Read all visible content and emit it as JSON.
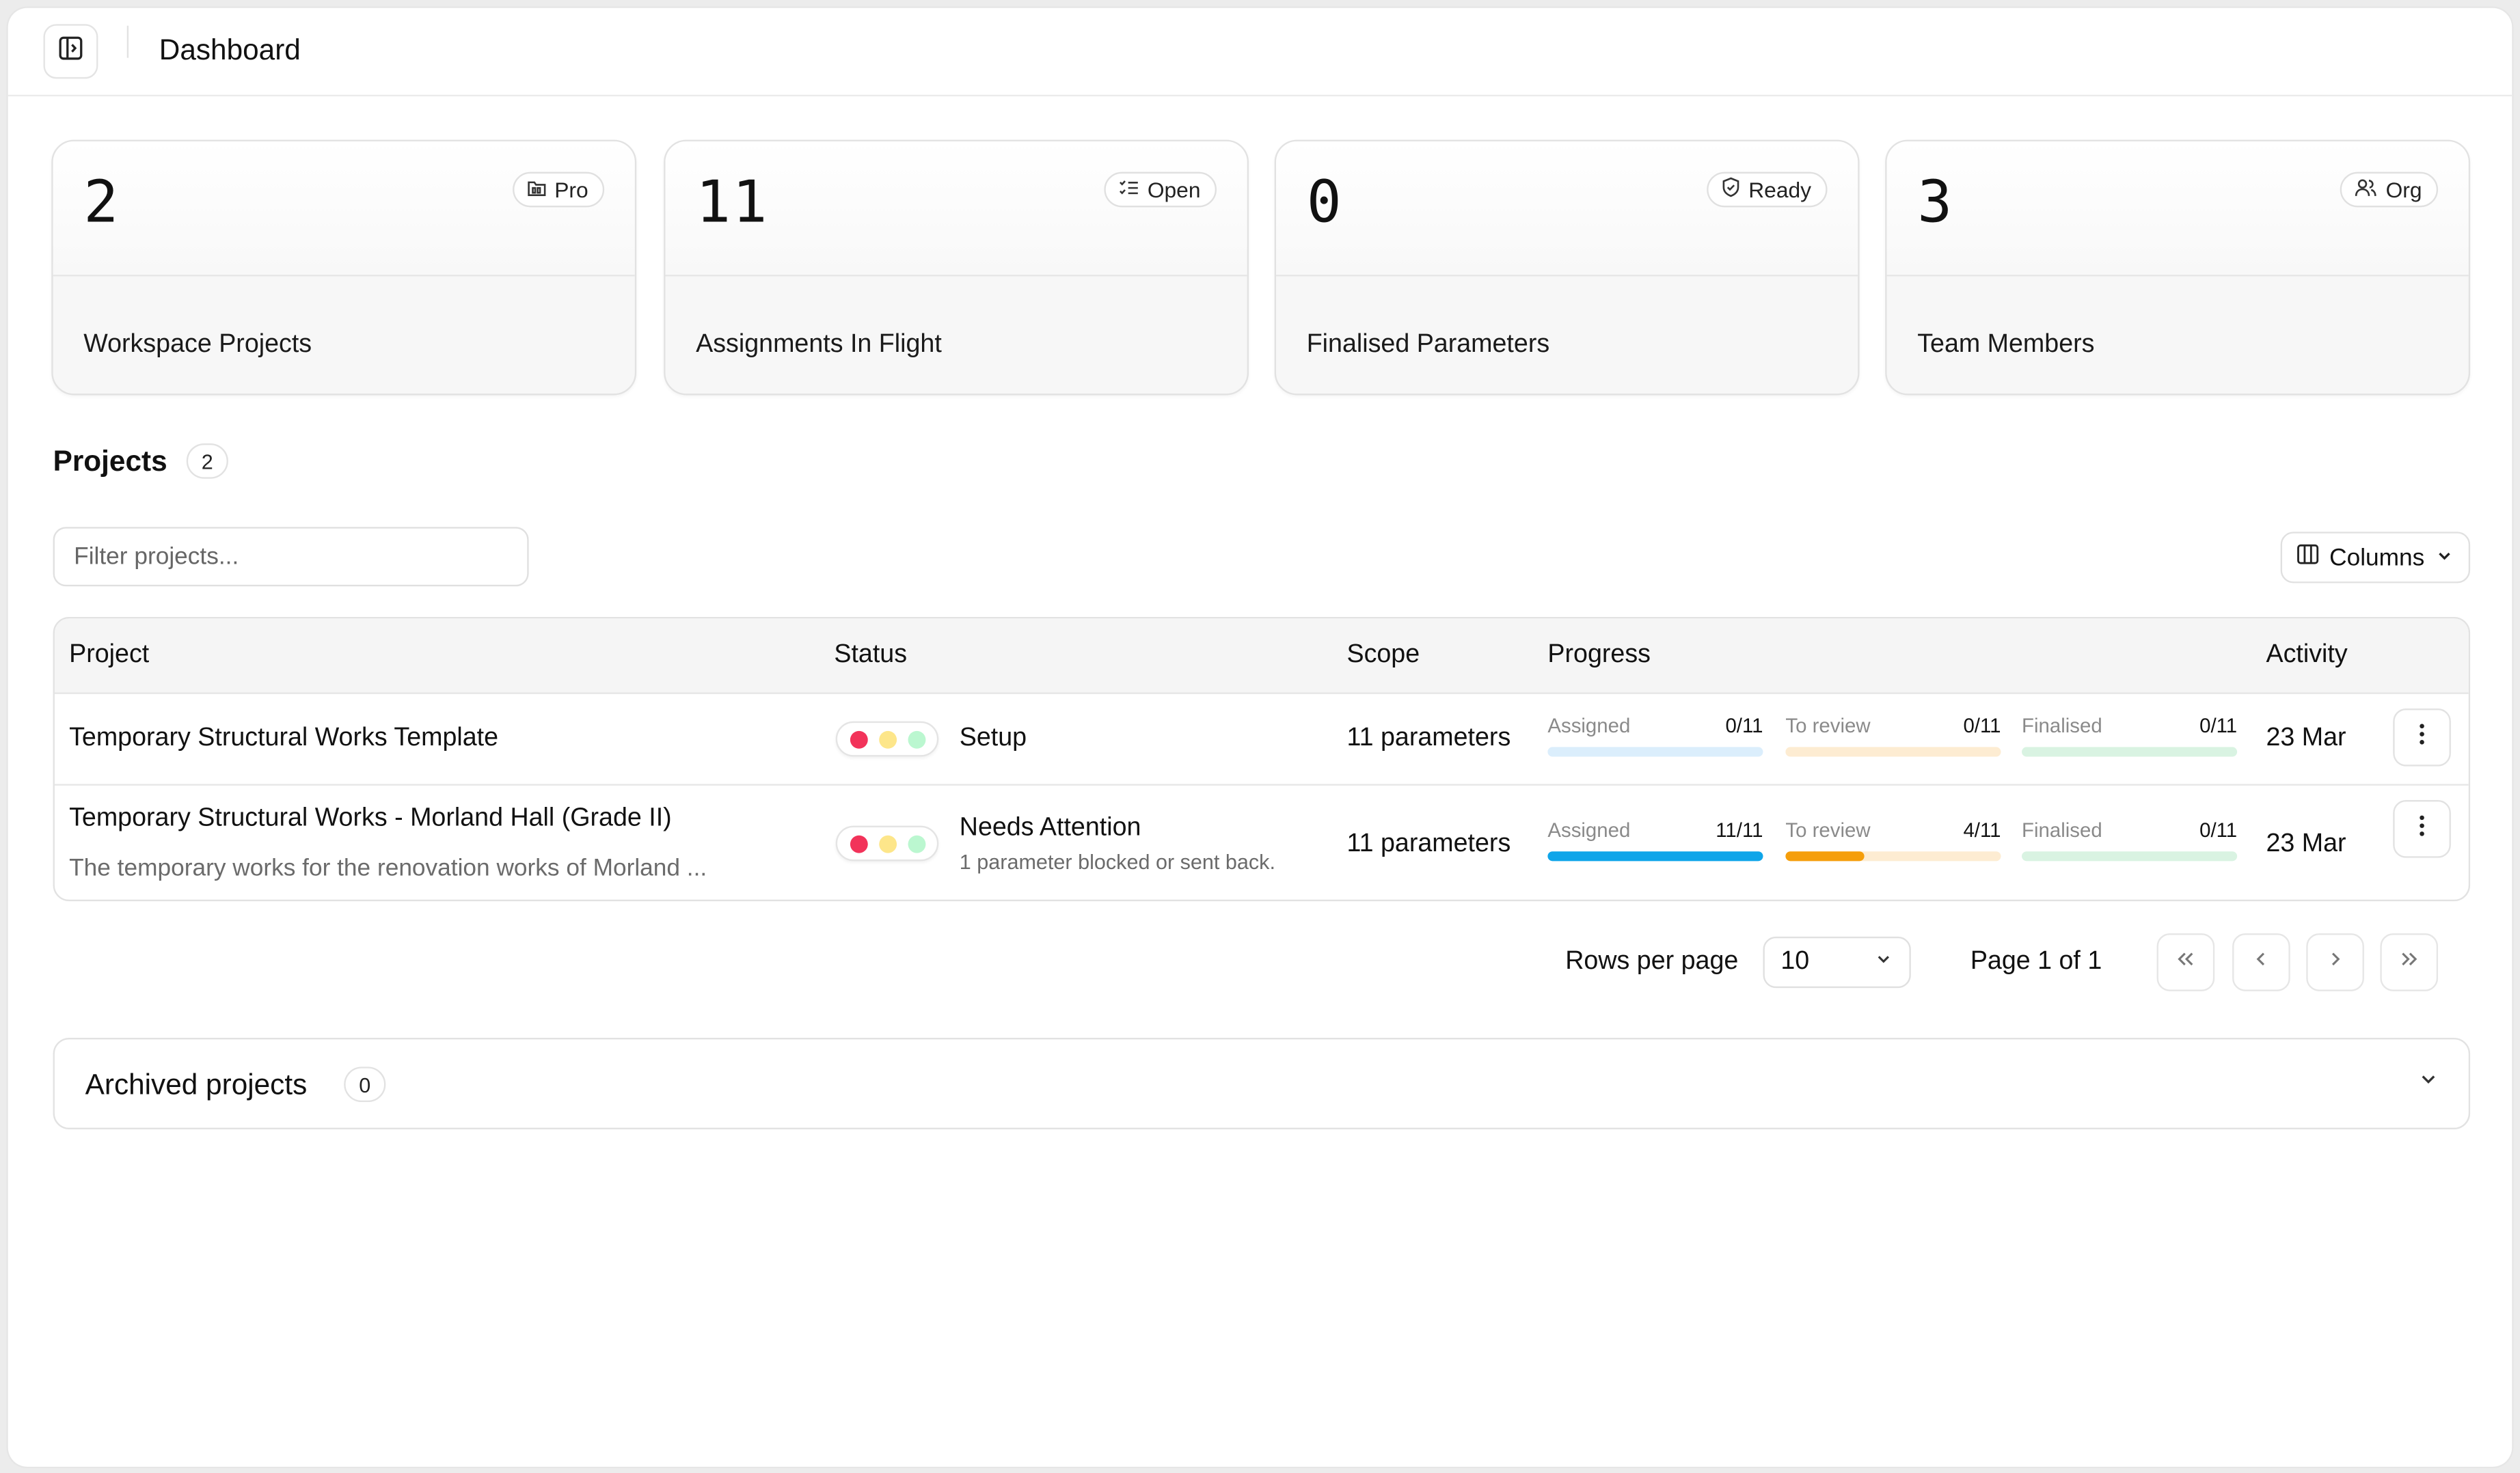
{
  "header": {
    "title": "Dashboard",
    "toggle_icon": "sidebar-toggle-icon"
  },
  "stats": [
    {
      "value": "2",
      "badge": "Pro",
      "badge_icon": "folder-icon",
      "label": "Workspace Projects"
    },
    {
      "value": "11",
      "badge": "Open",
      "badge_icon": "checklist-icon",
      "label": "Assignments In Flight"
    },
    {
      "value": "0",
      "badge": "Ready",
      "badge_icon": "shield-icon",
      "label": "Finalised Parameters"
    },
    {
      "value": "3",
      "badge": "Org",
      "badge_icon": "users-icon",
      "label": "Team Members"
    }
  ],
  "projects": {
    "title": "Projects",
    "count": "2",
    "filter_placeholder": "Filter projects...",
    "columns_label": "Columns",
    "table": {
      "headers": {
        "project": "Project",
        "status": "Status",
        "scope": "Scope",
        "progress": "Progress",
        "activity": "Activity"
      },
      "rows": [
        {
          "name": "Temporary Structural Works Template",
          "description": "",
          "status": "Setup",
          "status_sub": "",
          "scope": "11 parameters",
          "progress": [
            {
              "label": "Assigned",
              "count": "0/11",
              "fraction": 0
            },
            {
              "label": "To review",
              "count": "0/11",
              "fraction": 0
            },
            {
              "label": "Finalised",
              "count": "0/11",
              "fraction": 0
            }
          ],
          "activity": "23 Mar"
        },
        {
          "name": "Temporary Structural Works - Morland Hall (Grade II)",
          "description": "The temporary works for the renovation works of Morland ...",
          "status": "Needs Attention",
          "status_sub": "1 parameter blocked or sent back.",
          "scope": "11 parameters",
          "progress": [
            {
              "label": "Assigned",
              "count": "11/11",
              "fraction": 1.0
            },
            {
              "label": "To review",
              "count": "4/11",
              "fraction": 0.3636
            },
            {
              "label": "Finalised",
              "count": "0/11",
              "fraction": 0
            }
          ],
          "activity": "23 Mar"
        }
      ]
    },
    "pagination": {
      "rows_per_page_label": "Rows per page",
      "rows_per_page_value": "10",
      "page_label": "Page 1 of 1"
    }
  },
  "archived": {
    "title": "Archived projects",
    "count": "0"
  },
  "colors": {
    "status_red": "#f2335a",
    "status_yellow": "#fde68a",
    "status_green": "#bbf7d0",
    "assigned_fill": "#0ea5e9",
    "assigned_track": "#dbeefc",
    "review_fill": "#f59e0b",
    "review_track": "#fdecd2",
    "finalised_fill": "#22c55e",
    "finalised_track": "#d9f3e2"
  }
}
